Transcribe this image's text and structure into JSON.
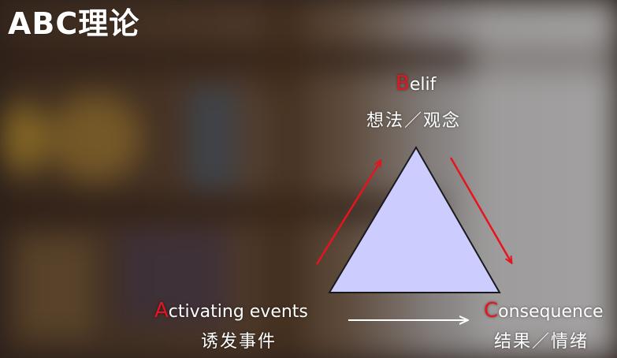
{
  "title": "ABC理论",
  "belief": {
    "initial": "B",
    "rest": "elif",
    "chinese": "想法／观念"
  },
  "activating": {
    "initial": "A",
    "rest": "ctivating events",
    "chinese": "诱发事件"
  },
  "consequence": {
    "initial": "C",
    "rest": "onsequence",
    "chinese": "结果／情绪"
  },
  "colors": {
    "triangle_fill": "#ccccff",
    "triangle_stroke": "#1a1a1a",
    "arrow_red": "#e6141e",
    "arrow_white": "#ffffff",
    "initial_red": "#e6141e"
  }
}
